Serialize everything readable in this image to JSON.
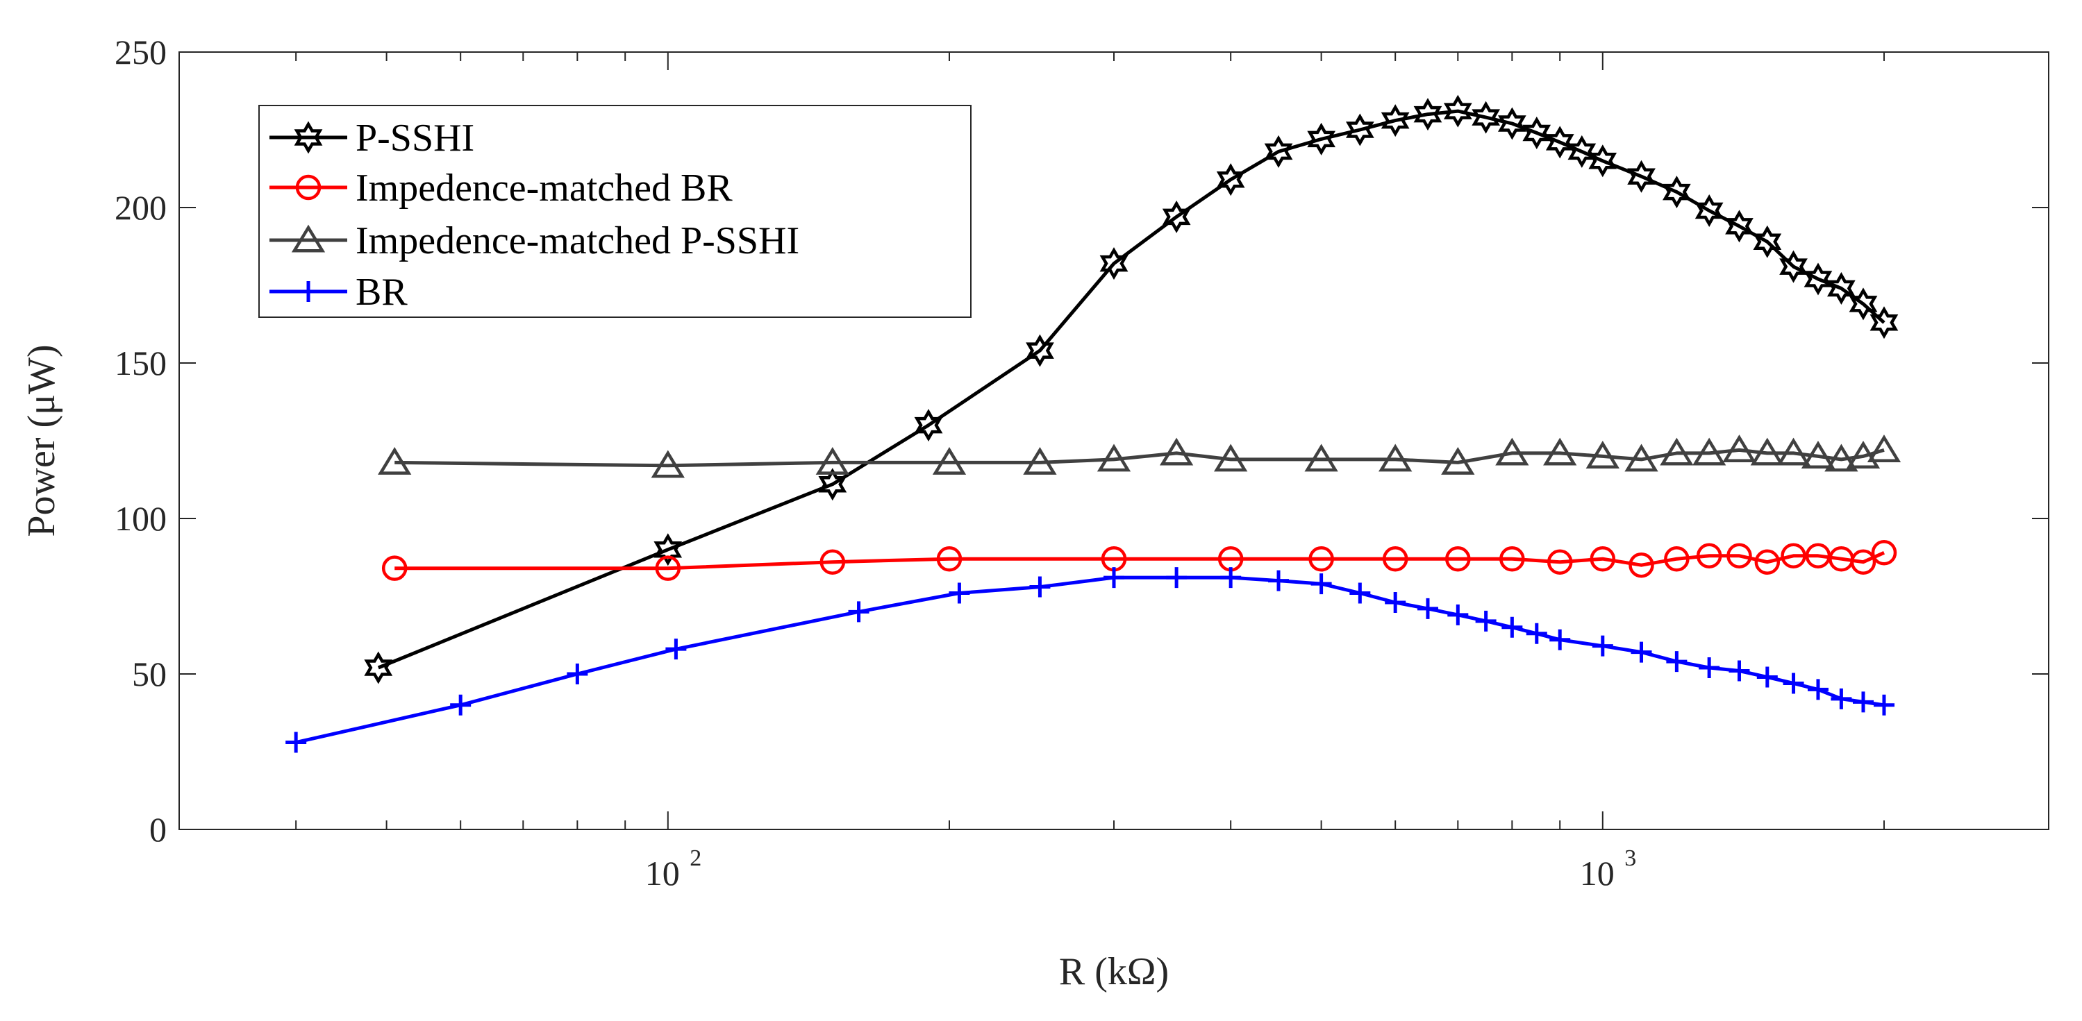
{
  "chart_data": {
    "type": "line",
    "title": "",
    "xlabel": "R (kΩ)",
    "ylabel": "Power (μW)",
    "xscale": "log",
    "xlim": [
      30,
      3000
    ],
    "ylim": [
      0,
      250
    ],
    "xticks": [
      100,
      1000
    ],
    "xtick_labels": [
      {
        "base": "10",
        "exp": "2"
      },
      {
        "base": "10",
        "exp": "3"
      }
    ],
    "yticks": [
      0,
      50,
      100,
      150,
      200,
      250
    ],
    "ytick_labels": [
      "0",
      "50",
      "100",
      "150",
      "200",
      "250"
    ],
    "grid": false,
    "legend_position": "top-left",
    "series": [
      {
        "name": "P-SSHI",
        "color": "#000000",
        "marker": "hexagram",
        "x": [
          49,
          100,
          150,
          190,
          250,
          300,
          350,
          400,
          450,
          500,
          550,
          600,
          650,
          700,
          750,
          800,
          850,
          900,
          950,
          1000,
          1100,
          1200,
          1300,
          1400,
          1500,
          1600,
          1700,
          1800,
          1900,
          2000
        ],
        "y": [
          52,
          90,
          111,
          130,
          154,
          182,
          197,
          209,
          218,
          222,
          225,
          228,
          230,
          231,
          229,
          227,
          224,
          221,
          218,
          215,
          210,
          205,
          199,
          194,
          189,
          181,
          177,
          174,
          169,
          163
        ]
      },
      {
        "name": "Impedence-matched BR",
        "color": "#ff0000",
        "marker": "circle",
        "x": [
          51,
          100,
          150,
          200,
          300,
          400,
          500,
          600,
          700,
          800,
          900,
          1000,
          1100,
          1200,
          1300,
          1400,
          1500,
          1600,
          1700,
          1800,
          1900,
          2000
        ],
        "y": [
          84,
          84,
          86,
          87,
          87,
          87,
          87,
          87,
          87,
          87,
          86,
          87,
          85,
          87,
          88,
          88,
          86,
          88,
          88,
          87,
          86,
          89
        ]
      },
      {
        "name": "Impedence-matched P-SSHI",
        "color": "#404040",
        "marker": "triangle",
        "x": [
          51,
          100,
          150,
          200,
          250,
          300,
          350,
          400,
          500,
          600,
          700,
          800,
          900,
          1000,
          1100,
          1200,
          1300,
          1400,
          1500,
          1600,
          1700,
          1800,
          1900,
          2000
        ],
        "y": [
          118,
          117,
          118,
          118,
          118,
          119,
          121,
          119,
          119,
          119,
          118,
          121,
          121,
          120,
          119,
          121,
          121,
          122,
          121,
          121,
          120,
          119,
          120,
          122
        ]
      },
      {
        "name": "BR",
        "color": "#0000ff",
        "marker": "plus",
        "x": [
          40,
          60,
          80,
          102,
          160,
          205,
          250,
          300,
          350,
          400,
          450,
          500,
          550,
          600,
          650,
          700,
          750,
          800,
          850,
          900,
          1000,
          1100,
          1200,
          1300,
          1400,
          1500,
          1600,
          1700,
          1800,
          1900,
          2000
        ],
        "y": [
          28,
          40,
          50,
          58,
          70,
          76,
          78,
          81,
          81,
          81,
          80,
          79,
          76,
          73,
          71,
          69,
          67,
          65,
          63,
          61,
          59,
          57,
          54,
          52,
          51,
          49,
          47,
          45,
          42,
          41,
          40
        ]
      }
    ]
  }
}
